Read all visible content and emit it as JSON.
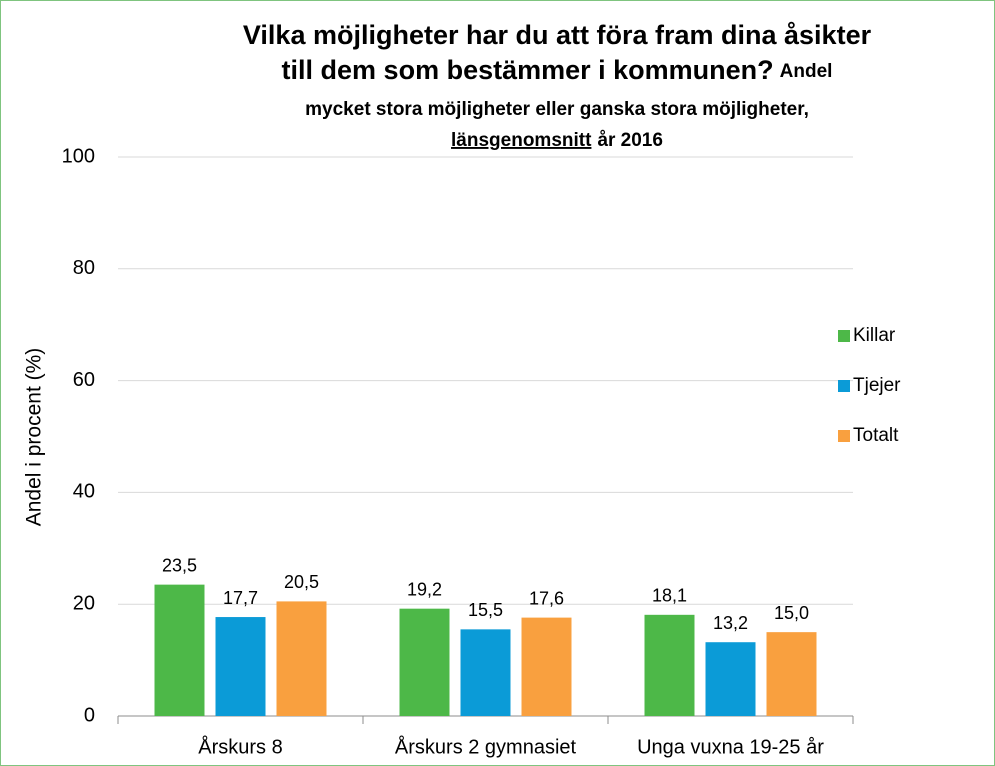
{
  "chart_data": {
    "type": "bar",
    "title": [
      "Vilka möjligheter har du att föra fram dina åsikter",
      "till dem som bestämmer i kommunen?"
    ],
    "subtitle": [
      "Andel",
      "mycket stora möjligheter eller ganska stora möjligheter,",
      "länsgenomsnitt",
      "år 2016"
    ],
    "ylabel": "Andel i procent (%)",
    "categories": [
      "Årskurs 8",
      "Årskurs 2 gymnasiet",
      "Unga vuxna 19-25 år"
    ],
    "series": [
      {
        "name": "Killar",
        "color": "#4db848",
        "values": [
          23.5,
          19.2,
          18.1
        ],
        "value_labels": [
          "23,5",
          "19,2",
          "18,1"
        ]
      },
      {
        "name": "Tjejer",
        "color": "#0b9bd7",
        "values": [
          17.7,
          15.5,
          13.2
        ],
        "value_labels": [
          "17,7",
          "15,5",
          "13,2"
        ]
      },
      {
        "name": "Totalt",
        "color": "#f9a03f",
        "values": [
          20.5,
          17.6,
          15.0
        ],
        "value_labels": [
          "20,5",
          "17,6",
          "15,0"
        ]
      }
    ],
    "ylim": [
      0,
      100
    ],
    "yticks": [
      0,
      20,
      40,
      60,
      80,
      100
    ],
    "grid": true,
    "legend": "right"
  }
}
